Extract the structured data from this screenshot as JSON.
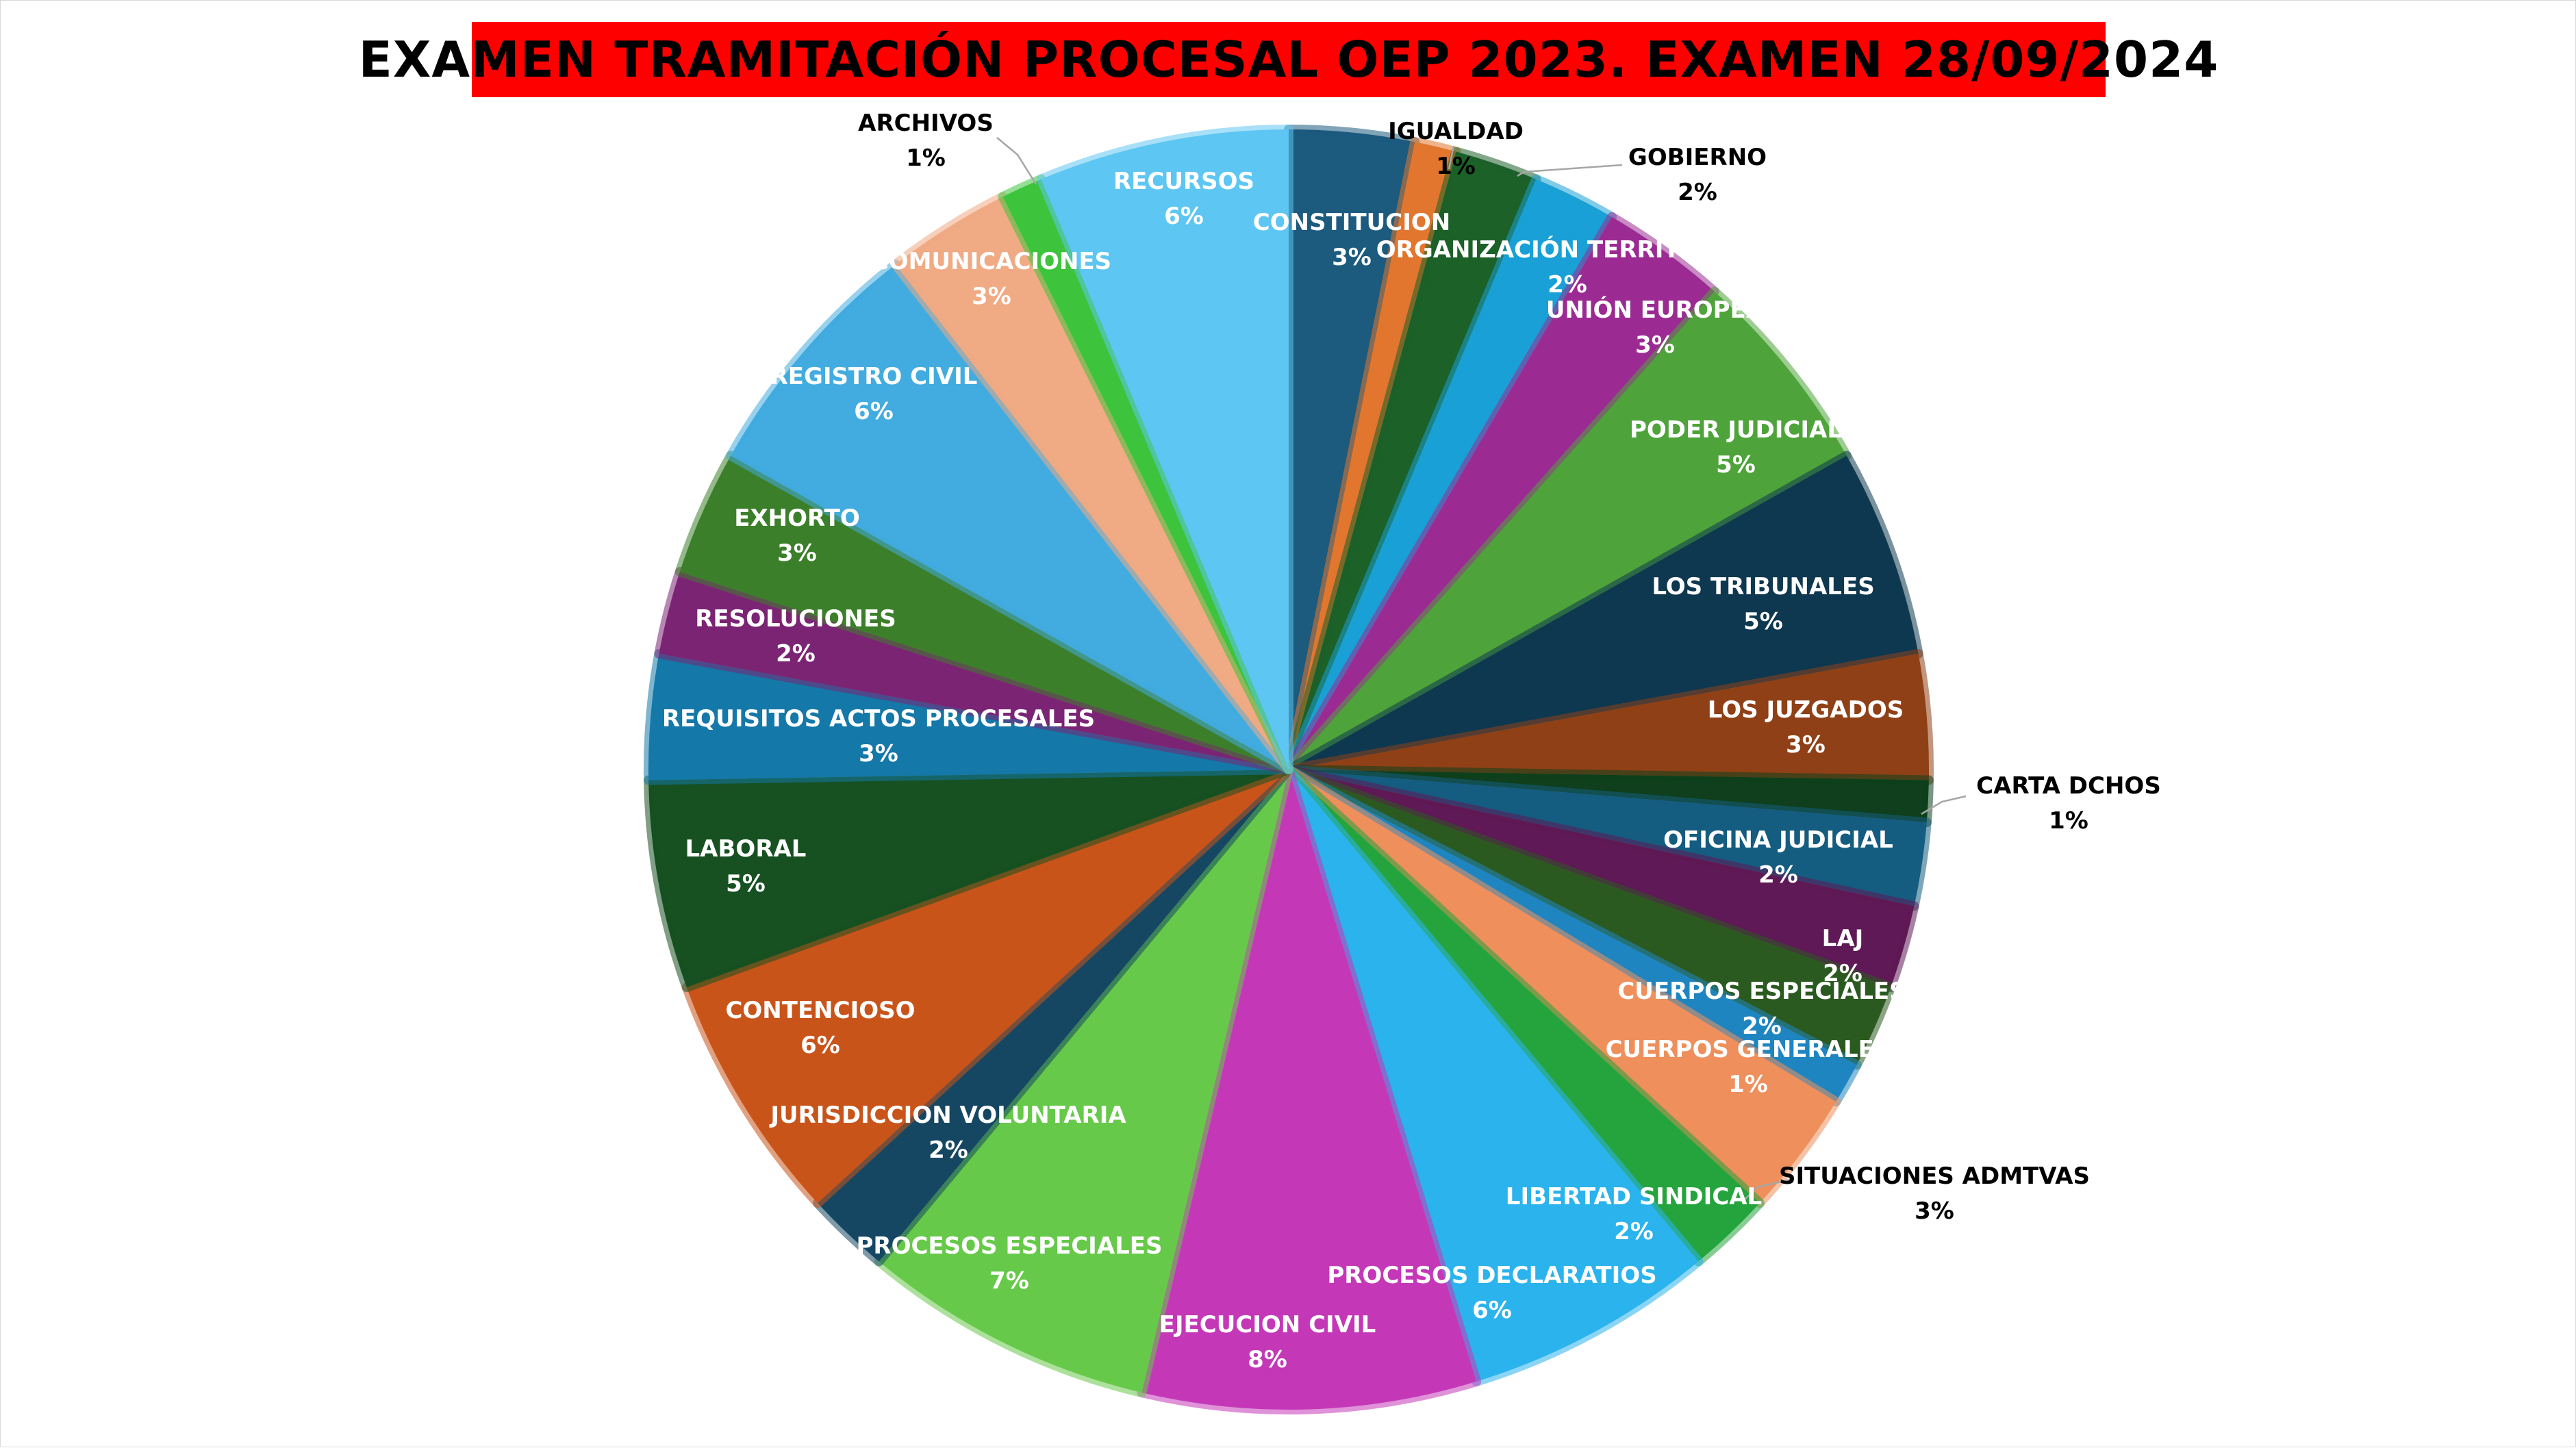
{
  "chart_data": {
    "type": "pie",
    "title": "EXAMEN TRAMITACIÓN PROCESAL OEP 2023. EXAMEN 28/09/2024",
    "start_angle_deg": 0,
    "direction": "clockwise",
    "slices": [
      {
        "label": "CONSTITUCION",
        "pct": "3%",
        "value": 3.0,
        "color": "#1c5a7e",
        "label_color": "#ffffff"
      },
      {
        "label": "IGUALDAD",
        "pct": "1%",
        "value": 1.0,
        "color": "#e2762e",
        "label_color": "#000000",
        "outside": true
      },
      {
        "label": "GOBIERNO",
        "pct": "2%",
        "value": 2.0,
        "color": "#1b6128",
        "label_color": "#000000",
        "outside": true
      },
      {
        "label": "ORGANIZACIÓN TERRITORIAL",
        "pct": "2%",
        "value": 2.0,
        "color": "#19a0d6",
        "label_color": "#ffffff"
      },
      {
        "label": "UNIÓN EUROPEA",
        "pct": "3%",
        "value": 3.0,
        "color": "#9b2b92",
        "label_color": "#ffffff"
      },
      {
        "label": "PODER JUDICIAL",
        "pct": "5%",
        "value": 5.0,
        "color": "#4ea43a",
        "label_color": "#ffffff"
      },
      {
        "label": "LOS TRIBUNALES",
        "pct": "5%",
        "value": 5.0,
        "color": "#0e3850",
        "label_color": "#ffffff"
      },
      {
        "label": "LOS JUZGADOS",
        "pct": "3%",
        "value": 3.0,
        "color": "#8f4016",
        "label_color": "#ffffff"
      },
      {
        "label": "CARTA DCHOS",
        "pct": "1%",
        "value": 1.0,
        "color": "#0f3f1c",
        "label_color": "#000000",
        "outside": true
      },
      {
        "label": "OFICINA JUDICIAL",
        "pct": "2%",
        "value": 2.0,
        "color": "#145c80",
        "label_color": "#ffffff"
      },
      {
        "label": "LAJ",
        "pct": "2%",
        "value": 2.0,
        "color": "#5e1956",
        "label_color": "#ffffff"
      },
      {
        "label": "CUERPOS ESPECIALES",
        "pct": "2%",
        "value": 2.0,
        "color": "#2b5a20",
        "label_color": "#ffffff"
      },
      {
        "label": "CUERPOS GENERALES",
        "pct": "1%",
        "value": 1.0,
        "color": "#1f85c0",
        "label_color": "#ffffff"
      },
      {
        "label": "SITUACIONES ADMTVAS",
        "pct": "3%",
        "value": 3.0,
        "color": "#ee8f5c",
        "label_color": "#000000",
        "outside": true
      },
      {
        "label": "LIBERTAD SINDICAL",
        "pct": "2%",
        "value": 2.0,
        "color": "#25a43d",
        "label_color": "#ffffff"
      },
      {
        "label": "PROCESOS DECLARATIOS",
        "pct": "6%",
        "value": 6.0,
        "color": "#2ab3ec",
        "label_color": "#ffffff"
      },
      {
        "label": "EJECUCION CIVIL",
        "pct": "8%",
        "value": 8.0,
        "color": "#c438b8",
        "label_color": "#ffffff"
      },
      {
        "label": "PROCESOS ESPECIALES",
        "pct": "7%",
        "value": 7.0,
        "color": "#67c94a",
        "label_color": "#ffffff"
      },
      {
        "label": "JURISDICCION VOLUNTARIA",
        "pct": "2%",
        "value": 2.0,
        "color": "#154763",
        "label_color": "#ffffff"
      },
      {
        "label": "CONTENCIOSO",
        "pct": "6%",
        "value": 6.0,
        "color": "#c9541a",
        "label_color": "#ffffff"
      },
      {
        "label": "LABORAL",
        "pct": "5%",
        "value": 5.0,
        "color": "#175021",
        "label_color": "#ffffff"
      },
      {
        "label": "REQUISITOS ACTOS PROCESALES",
        "pct": "3%",
        "value": 3.0,
        "color": "#1478a8",
        "label_color": "#ffffff"
      },
      {
        "label": "RESOLUCIONES",
        "pct": "2%",
        "value": 2.0,
        "color": "#7b2474",
        "label_color": "#ffffff"
      },
      {
        "label": "EXHORTO",
        "pct": "3%",
        "value": 3.0,
        "color": "#3c7f2a",
        "label_color": "#ffffff"
      },
      {
        "label": "REGISTRO CIVIL",
        "pct": "6%",
        "value": 6.0,
        "color": "#42ace0",
        "label_color": "#ffffff"
      },
      {
        "label": "COMUNICACIONES",
        "pct": "3%",
        "value": 3.0,
        "color": "#f0aa84",
        "label_color": "#ffffff"
      },
      {
        "label": "ARCHIVOS",
        "pct": "1%",
        "value": 1.0,
        "color": "#3dc43c",
        "label_color": "#000000",
        "outside": true
      },
      {
        "label": "RECURSOS",
        "pct": "6%",
        "value": 6.0,
        "color": "#5ec6f2",
        "label_color": "#ffffff"
      }
    ]
  }
}
